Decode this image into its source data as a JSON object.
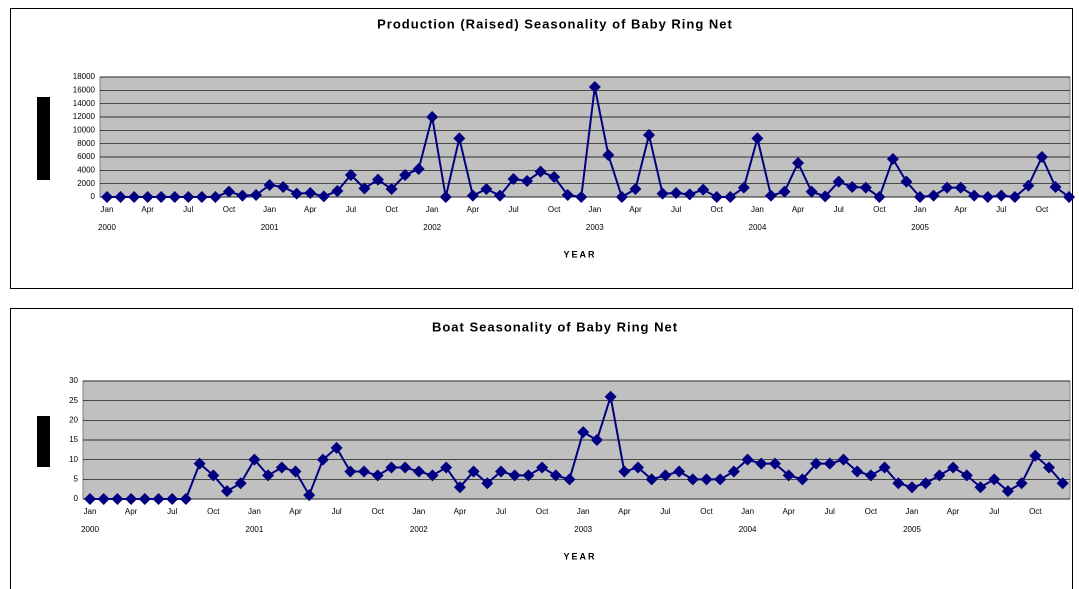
{
  "chart_data": [
    {
      "type": "line",
      "title": "Production (Raised) Seasonality of Baby Ring Net",
      "x_label": "YEAR",
      "categories": [
        "Jan",
        null,
        null,
        "Apr",
        null,
        null,
        "Jul",
        null,
        null,
        "Oct",
        null,
        null,
        "Jan",
        null,
        null,
        "Apr",
        null,
        null,
        "Jul",
        null,
        null,
        "Oct",
        null,
        null,
        "Jan",
        null,
        null,
        "Apr",
        null,
        null,
        "Jul",
        null,
        null,
        "Oct",
        null,
        null,
        "Jan",
        null,
        null,
        "Apr",
        null,
        null,
        "Jul",
        null,
        null,
        "Oct",
        null,
        null,
        "Jan",
        null,
        null,
        "Apr",
        null,
        null,
        "Jul",
        null,
        null,
        "Oct",
        null,
        null,
        "Jan",
        null,
        null,
        "Apr",
        null,
        null,
        "Jul",
        null,
        null,
        "Oct",
        null,
        null
      ],
      "years": [
        "2000",
        "2001",
        "2002",
        "2003",
        "2004",
        "2005"
      ],
      "series": [
        {
          "name": "Production",
          "color": "#000080",
          "values": [
            0,
            0,
            0,
            0,
            0,
            0,
            0,
            0,
            0,
            800,
            200,
            300,
            1800,
            1500,
            500,
            600,
            100,
            900,
            3300,
            1300,
            2600,
            1200,
            3300,
            4200,
            12000,
            0,
            8800,
            200,
            1200,
            200,
            2700,
            2400,
            3800,
            3000,
            300,
            0,
            16500,
            6300,
            0,
            1200,
            9300,
            500,
            600,
            400,
            1100,
            0,
            0,
            1400,
            8800,
            200,
            800,
            5100,
            800,
            100,
            2300,
            1500,
            1400,
            0,
            5700,
            2300,
            0,
            200,
            1400,
            1400,
            200,
            0,
            200,
            0,
            1700,
            6000,
            1500,
            0
          ]
        }
      ],
      "ylim": [
        0,
        18000
      ],
      "yticks": [
        0,
        2000,
        4000,
        6000,
        8000,
        10000,
        12000,
        14000,
        16000,
        18000
      ],
      "grid": true
    },
    {
      "type": "line",
      "title": "Boat Seasonality of Baby Ring Net",
      "x_label": "YEAR",
      "categories": [
        "Jan",
        null,
        null,
        "Apr",
        null,
        null,
        "Jul",
        null,
        null,
        "Oct",
        null,
        null,
        "Jan",
        null,
        null,
        "Apr",
        null,
        null,
        "Jul",
        null,
        null,
        "Oct",
        null,
        null,
        "Jan",
        null,
        null,
        "Apr",
        null,
        null,
        "Jul",
        null,
        null,
        "Oct",
        null,
        null,
        "Jan",
        null,
        null,
        "Apr",
        null,
        null,
        "Jul",
        null,
        null,
        "Oct",
        null,
        null,
        "Jan",
        null,
        null,
        "Apr",
        null,
        null,
        "Jul",
        null,
        null,
        "Oct",
        null,
        null,
        "Jan",
        null,
        null,
        "Apr",
        null,
        null,
        "Jul",
        null,
        null,
        "Oct",
        null,
        null
      ],
      "years": [
        "2000",
        "2001",
        "2002",
        "2003",
        "2004",
        "2005"
      ],
      "series": [
        {
          "name": "Boats",
          "color": "#000080",
          "values": [
            0,
            0,
            0,
            0,
            0,
            0,
            0,
            0,
            9,
            6,
            2,
            4,
            10,
            6,
            8,
            7,
            1,
            10,
            13,
            7,
            7,
            6,
            8,
            8,
            7,
            6,
            8,
            3,
            7,
            4,
            7,
            6,
            6,
            8,
            6,
            5,
            17,
            15,
            26,
            7,
            8,
            5,
            6,
            7,
            5,
            5,
            5,
            7,
            10,
            9,
            9,
            6,
            5,
            9,
            9,
            10,
            7,
            6,
            8,
            4,
            3,
            4,
            6,
            8,
            6,
            3,
            5,
            2,
            4,
            11,
            8,
            4
          ]
        }
      ],
      "ylim": [
        0,
        30
      ],
      "yticks": [
        0,
        5,
        10,
        15,
        20,
        25,
        30
      ],
      "grid": true
    }
  ]
}
